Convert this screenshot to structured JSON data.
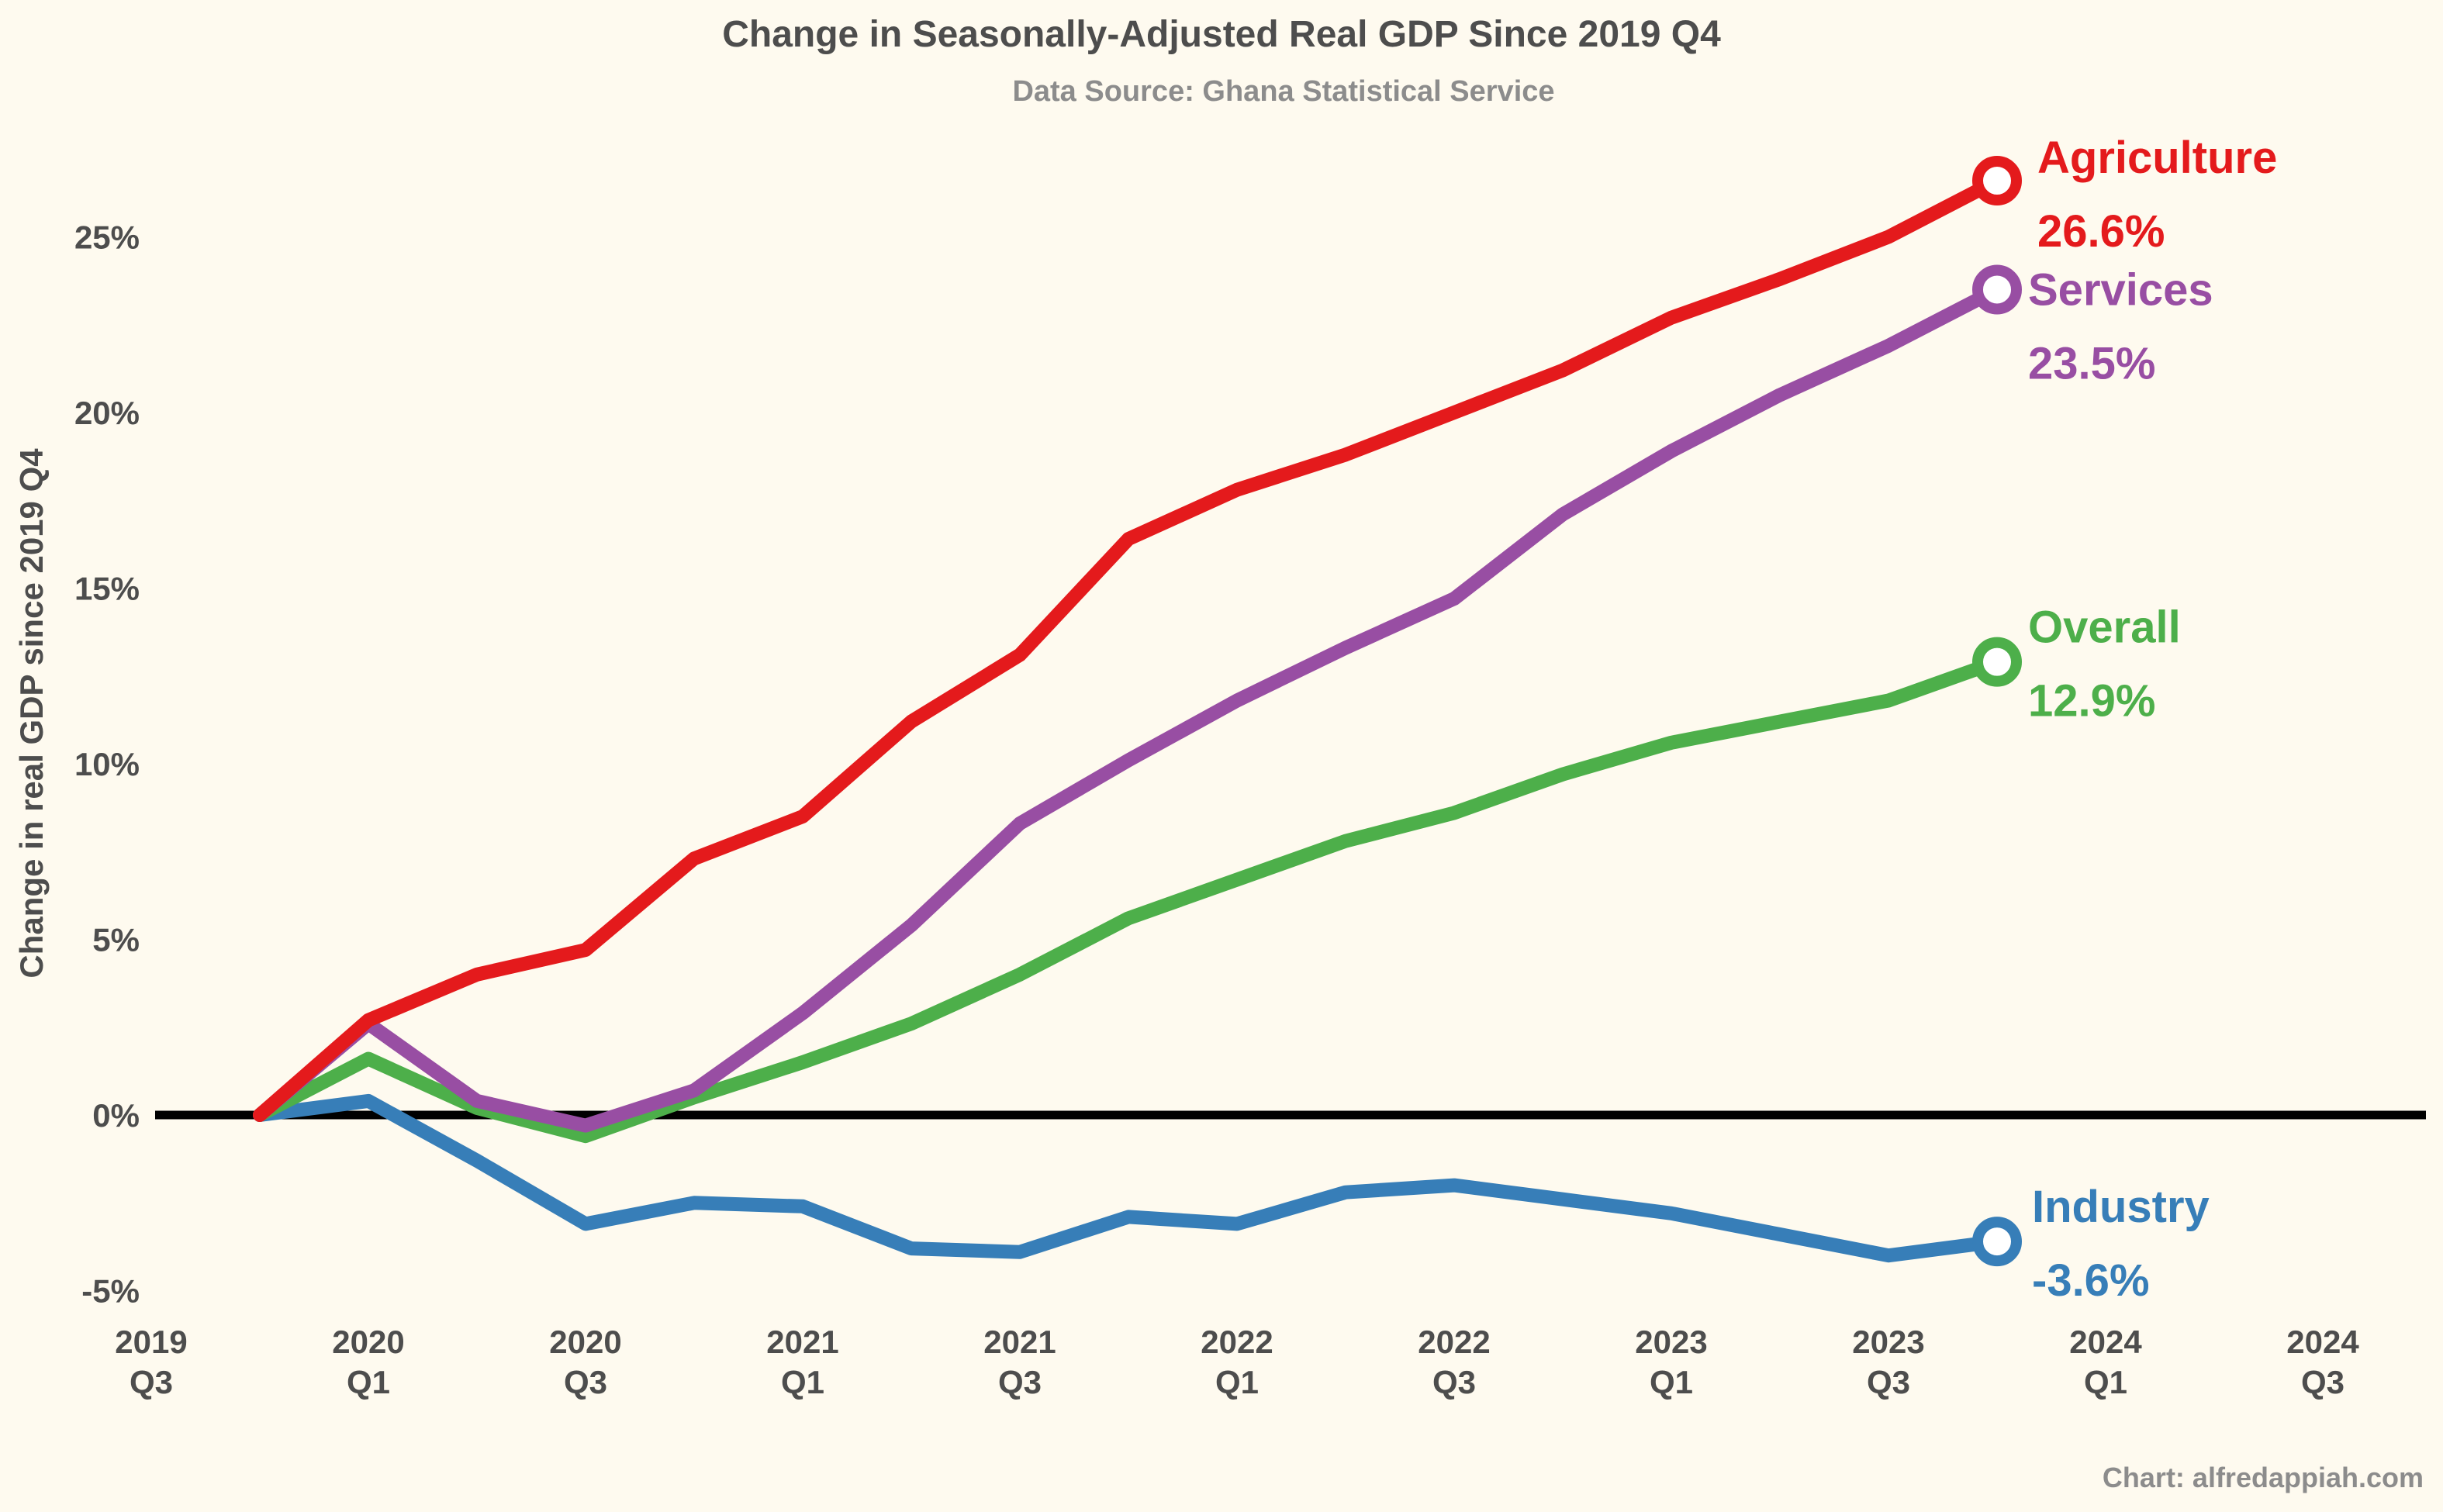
{
  "chart_data": {
    "type": "line",
    "title": "Change in Seasonally-Adjusted Real GDP Since 2019 Q4",
    "subtitle": "Data Source: Ghana Statistical Service",
    "caption": "Chart: alfredappiah.com",
    "ylabel": "Change in real GDP since 2019 Q4",
    "ylim": [
      -5,
      27
    ],
    "y_ticks": [
      {
        "value": -5,
        "label": "-5%"
      },
      {
        "value": 0,
        "label": "0%"
      },
      {
        "value": 5,
        "label": "5%"
      },
      {
        "value": 10,
        "label": "10%"
      },
      {
        "value": 15,
        "label": "15%"
      },
      {
        "value": 20,
        "label": "20%"
      },
      {
        "value": 25,
        "label": "25%"
      }
    ],
    "x_ticks": [
      {
        "year": "2019",
        "quarter": "Q3"
      },
      {
        "year": "2020",
        "quarter": "Q1"
      },
      {
        "year": "2020",
        "quarter": "Q3"
      },
      {
        "year": "2021",
        "quarter": "Q1"
      },
      {
        "year": "2021",
        "quarter": "Q3"
      },
      {
        "year": "2022",
        "quarter": "Q1"
      },
      {
        "year": "2022",
        "quarter": "Q3"
      },
      {
        "year": "2023",
        "quarter": "Q1"
      },
      {
        "year": "2023",
        "quarter": "Q3"
      },
      {
        "year": "2024",
        "quarter": "Q1"
      },
      {
        "year": "2024",
        "quarter": "Q3"
      }
    ],
    "x": [
      "2019 Q4",
      "2020 Q1",
      "2020 Q2",
      "2020 Q3",
      "2020 Q4",
      "2021 Q1",
      "2021 Q2",
      "2021 Q3",
      "2021 Q4",
      "2022 Q1",
      "2022 Q2",
      "2022 Q3",
      "2022 Q4",
      "2023 Q1",
      "2023 Q2",
      "2023 Q3",
      "2023 Q4"
    ],
    "grid": false,
    "series": [
      {
        "name": "Agriculture",
        "end_label": "26.6%",
        "color": "#e41a1c",
        "values": [
          0,
          2.7,
          4.0,
          4.7,
          7.3,
          8.5,
          11.2,
          13.1,
          16.4,
          17.8,
          18.8,
          20.0,
          21.2,
          22.7,
          23.8,
          25.0,
          26.6
        ]
      },
      {
        "name": "Services",
        "end_label": "23.5%",
        "color": "#984ea3",
        "values": [
          0,
          2.6,
          0.4,
          -0.3,
          0.7,
          2.9,
          5.4,
          8.3,
          10.1,
          11.8,
          13.3,
          14.7,
          17.1,
          18.9,
          20.5,
          21.9,
          23.5
        ]
      },
      {
        "name": "Overall",
        "end_label": "12.9%",
        "color": "#4daf4a",
        "values": [
          0,
          1.6,
          0.2,
          -0.6,
          0.5,
          1.5,
          2.6,
          4.0,
          5.6,
          6.7,
          7.8,
          8.6,
          9.7,
          10.6,
          11.2,
          11.8,
          12.9
        ]
      },
      {
        "name": "Industry",
        "end_label": "-3.6%",
        "color": "#377eb8",
        "values": [
          0,
          0.4,
          -1.3,
          -3.1,
          -2.5,
          -2.6,
          -3.8,
          -3.9,
          -2.9,
          -3.1,
          -2.2,
          -2.0,
          -2.4,
          -2.8,
          -3.4,
          -4.0,
          -3.6
        ]
      }
    ]
  }
}
